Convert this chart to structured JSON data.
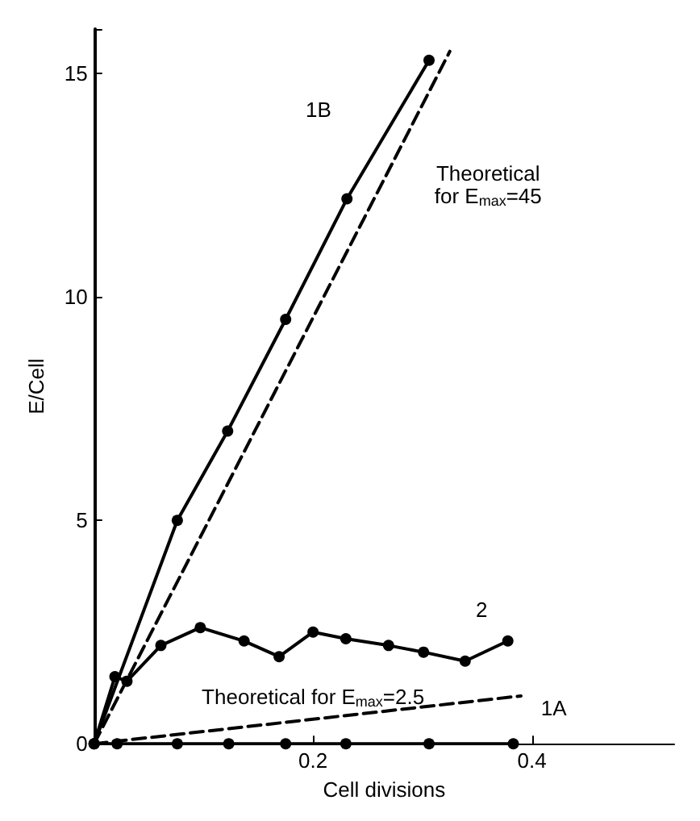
{
  "chart_data": {
    "type": "line",
    "xlabel": "Cell divisions",
    "ylabel": "E/Cell",
    "xlim": [
      0,
      0.53
    ],
    "ylim": [
      0,
      16
    ],
    "xticks": [
      0.2,
      0.4
    ],
    "yticks": [
      0,
      5,
      10,
      15
    ],
    "grid": false,
    "marker": "circle",
    "series": [
      {
        "color": "#000000",
        "x": [
          0,
          0.076,
          0.122,
          0.175,
          0.231,
          0.306
        ],
        "values": [
          0,
          5.0,
          7.0,
          9.5,
          12.2,
          15.3
        ]
      },
      {
        "color": "#000000",
        "x": [
          0,
          0.019,
          0.03,
          0.061,
          0.097,
          0.137,
          0.169,
          0.2,
          0.23,
          0.269,
          0.301,
          0.339,
          0.378
        ],
        "values": [
          0,
          1.5,
          1.4,
          2.2,
          2.6,
          2.3,
          1.95,
          2.5,
          2.35,
          2.2,
          2.05,
          1.85,
          2.3
        ]
      },
      {
        "color": "#000000",
        "x": [
          0,
          0.021,
          0.076,
          0.123,
          0.175,
          0.23,
          0.306,
          0.383
        ],
        "values": [
          0,
          0,
          0,
          0,
          0,
          0,
          0,
          0
        ]
      },
      {
        "color": "#000000",
        "marker": "none",
        "line_style": "dashed",
        "x": [
          0,
          0.325
        ],
        "values": [
          0,
          15.5
        ]
      },
      {
        "color": "#000000",
        "marker": "none",
        "line_style": "dashed",
        "x": [
          0,
          0.39
        ],
        "values": [
          0,
          1.07
        ]
      }
    ],
    "annotations": [
      "1B",
      "Theoretical\nfor E$_{max}$=45",
      "2",
      "Theoretical for E$_{max}$=2.5",
      "1A"
    ]
  }
}
